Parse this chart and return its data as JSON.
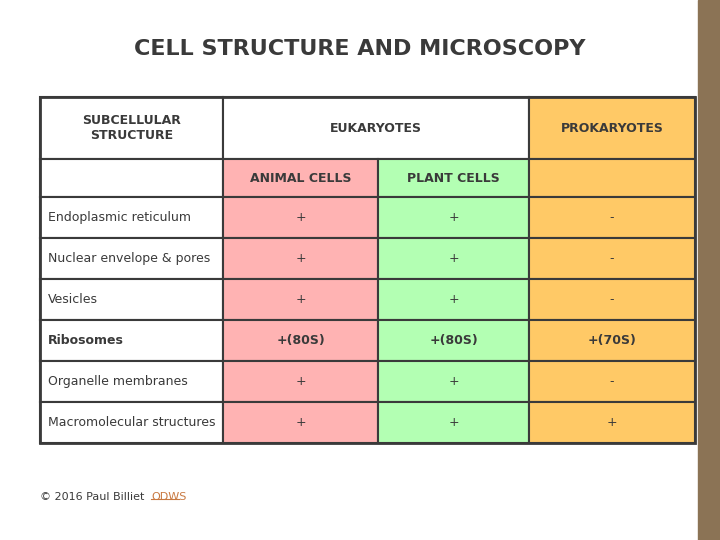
{
  "title": "CELL STRUCTURE AND MICROSCOPY",
  "title_fontsize": 16,
  "title_color": "#3a3a3a",
  "background_color": "#ffffff",
  "right_sidebar_color": "#8B7355",
  "rows": [
    [
      "Endoplasmic reticulum",
      "+",
      "+",
      "-"
    ],
    [
      "Nuclear envelope & pores",
      "+",
      "+",
      "-"
    ],
    [
      "Vesicles",
      "+",
      "+",
      "-"
    ],
    [
      "Ribosomes",
      "+(80S)",
      "+(80S)",
      "+(70S)"
    ],
    [
      "Organelle membranes",
      "+",
      "+",
      "-"
    ],
    [
      "Macromolecular structures",
      "+",
      "+",
      "+"
    ]
  ],
  "footer_text": "© 2016 Paul Billiet ",
  "footer_link": "ODWS",
  "footer_color": "#3a3a3a",
  "footer_link_color": "#c87941",
  "border_color": "#3a3a3a",
  "text_color": "#3a3a3a",
  "white_bg": "#ffffff",
  "pink_bg": "#ffb3b3",
  "green_bg": "#b3ffb3",
  "orange_bg": "#ffc966"
}
